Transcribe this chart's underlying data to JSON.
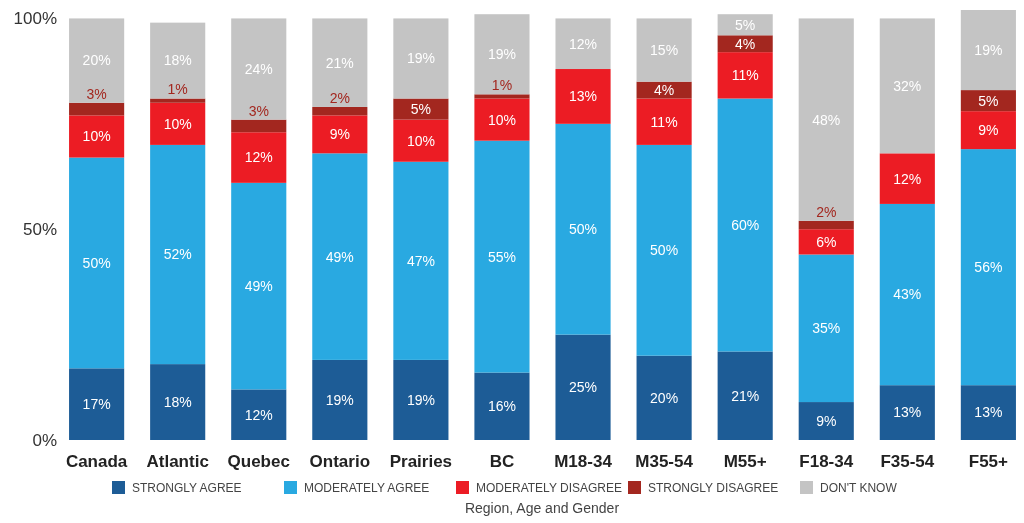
{
  "chart_data": {
    "type": "bar",
    "stacked": true,
    "xlabel": "Region, Age and Gender",
    "categories": [
      "Canada",
      "Atlantic",
      "Quebec",
      "Ontario",
      "Prairies",
      "BC",
      "M18-34",
      "M35-54",
      "M55+",
      "F18-34",
      "F35-54",
      "F55+"
    ],
    "series": [
      {
        "name": "STRONGLY AGREE",
        "color": "#1d5c96",
        "values": [
          17,
          18,
          12,
          19,
          19,
          16,
          25,
          20,
          21,
          9,
          13,
          13
        ],
        "value_labels": [
          "17%",
          "18%",
          "12%",
          "19%",
          "19%",
          "16%",
          "25%",
          "20%",
          "21%",
          "9%",
          "13%",
          "13%"
        ]
      },
      {
        "name": "MODERATELY AGREE",
        "color": "#29a9e1",
        "values": [
          50,
          52,
          49,
          49,
          47,
          55,
          50,
          50,
          60,
          35,
          43,
          56
        ],
        "value_labels": [
          "50%",
          "52%",
          "49%",
          "49%",
          "47%",
          "55%",
          "50%",
          "50%",
          "60%",
          "35%",
          "43%",
          "56%"
        ]
      },
      {
        "name": "MODERATELY DISAGREE",
        "color": "#ec1c24",
        "values": [
          10,
          10,
          12,
          9,
          10,
          10,
          13,
          11,
          11,
          6,
          12,
          9
        ],
        "value_labels": [
          "10%",
          "10%",
          "12%",
          "9%",
          "10%",
          "10%",
          "13%",
          "11%",
          "11%",
          "6%",
          "12%",
          "9%"
        ]
      },
      {
        "name": "STRONGLY DISAGREE",
        "color": "#a3271f",
        "values": [
          3,
          1,
          3,
          2,
          5,
          1,
          null,
          4,
          4,
          2,
          null,
          5
        ],
        "value_labels": [
          "3%",
          "1%",
          "3%",
          "2%",
          "5%",
          "1%",
          null,
          "4%",
          "4%",
          "2%",
          null,
          "5%"
        ]
      },
      {
        "name": "DON'T KNOW",
        "color": "#c4c4c4",
        "values": [
          20,
          18,
          24,
          21,
          19,
          19,
          12,
          15,
          5,
          48,
          32,
          19
        ],
        "value_labels": [
          "20%",
          "18%",
          "24%",
          "21%",
          "19%",
          "19%",
          "12%",
          "15%",
          "5%",
          "48%",
          "32%",
          "19%"
        ]
      }
    ],
    "ylim": [
      0,
      102
    ],
    "yticks": [
      {
        "value": 0,
        "label": "0%"
      },
      {
        "value": 50,
        "label": "50%"
      },
      {
        "value": 100,
        "label": "100%"
      }
    ],
    "grid": false,
    "legend": "bottom"
  }
}
